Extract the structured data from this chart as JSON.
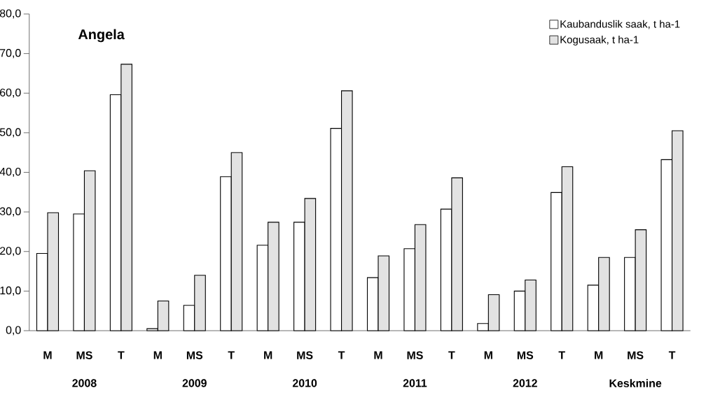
{
  "chart_data": {
    "type": "bar",
    "title": "Angela",
    "categories": [
      "M",
      "MS",
      "T",
      "M",
      "MS",
      "T",
      "M",
      "MS",
      "T",
      "M",
      "MS",
      "T",
      "M",
      "MS",
      "T",
      "M",
      "MS",
      "T"
    ],
    "annotations": [
      "2008",
      "2009",
      "2010",
      "2011",
      "2012",
      "Keskmine"
    ],
    "series": [
      {
        "name": "Kaubanduslik saak, t ha-1",
        "color": "#ffffff",
        "values": [
          19.5,
          29.5,
          59.6,
          0.5,
          6.4,
          38.9,
          21.6,
          27.4,
          51.1,
          13.4,
          20.7,
          30.7,
          1.8,
          10.0,
          34.9,
          11.5,
          18.5,
          43.2
        ]
      },
      {
        "name": "Kogusaak, t ha-1",
        "color": "#e2e2e2",
        "values": [
          29.8,
          40.4,
          67.3,
          7.5,
          14.0,
          45.0,
          27.4,
          33.4,
          60.6,
          18.9,
          26.8,
          38.6,
          9.1,
          12.8,
          41.4,
          18.5,
          25.5,
          50.5
        ]
      }
    ],
    "ylim": [
      0,
      80
    ],
    "yticks": [
      {
        "value": 0,
        "label": "0,0"
      },
      {
        "value": 10,
        "label": "10,0"
      },
      {
        "value": 20,
        "label": "20,0"
      },
      {
        "value": 30,
        "label": "30,0"
      },
      {
        "value": 40,
        "label": "40,0"
      },
      {
        "value": 50,
        "label": "50,0"
      },
      {
        "value": 60,
        "label": "60,0"
      },
      {
        "value": 70,
        "label": "70,0"
      },
      {
        "value": 80,
        "label": "80,0"
      }
    ],
    "grid": false,
    "legend": "top right"
  }
}
